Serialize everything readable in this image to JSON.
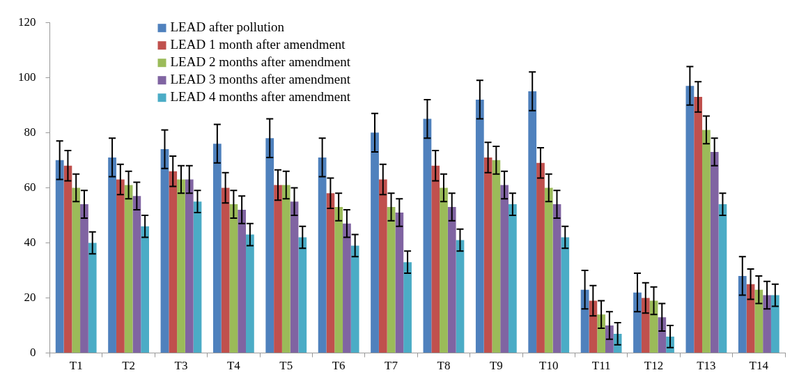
{
  "chart_data": {
    "type": "bar",
    "categories": [
      "T1",
      "T2",
      "T3",
      "T4",
      "T5",
      "T6",
      "T7",
      "T8",
      "T9",
      "T10",
      "T11",
      "T12",
      "T13",
      "T14"
    ],
    "series": [
      {
        "name": "LEAD after pollution",
        "color": "#4f81bd",
        "values": [
          70,
          71,
          74,
          76,
          78,
          71,
          80,
          85,
          92,
          95,
          23,
          22,
          97,
          28
        ],
        "errors": [
          7,
          7,
          7,
          7,
          7,
          7,
          7,
          7,
          7,
          7,
          7,
          7,
          7,
          7
        ]
      },
      {
        "name": "LEAD 1 month after amendment",
        "color": "#c0504d",
        "values": [
          68,
          63,
          66,
          60,
          61,
          58,
          63,
          68,
          71,
          69,
          19,
          20,
          93,
          25
        ],
        "errors": [
          5.5,
          5.5,
          5.5,
          5.5,
          5.5,
          5.5,
          5.5,
          5.5,
          5.5,
          5.5,
          5.5,
          5.5,
          5.5,
          5.5
        ]
      },
      {
        "name": "LEAD 2 months after amendment",
        "color": "#9bbb59",
        "values": [
          60,
          61,
          63,
          54,
          61,
          53,
          53,
          60,
          70,
          60,
          14,
          19,
          81,
          23
        ],
        "errors": [
          5,
          5,
          5,
          5,
          5,
          5,
          5,
          5,
          5,
          5,
          5,
          5,
          5,
          5
        ]
      },
      {
        "name": "LEAD 3 months after amendment",
        "color": "#8064a2",
        "values": [
          54,
          57,
          63,
          52,
          55,
          47,
          51,
          53,
          61,
          54,
          10,
          13,
          73,
          21
        ],
        "errors": [
          5,
          5,
          5,
          5,
          5,
          5,
          5,
          5,
          5,
          5,
          5,
          5,
          5,
          5
        ]
      },
      {
        "name": "LEAD 4 months after amendment",
        "color": "#4bacc6",
        "values": [
          40,
          46,
          55,
          43,
          42,
          39,
          33,
          41,
          54,
          42,
          7,
          6,
          54,
          21
        ],
        "errors": [
          4,
          4,
          4,
          4,
          4,
          4,
          4,
          4,
          4,
          4,
          4,
          4,
          4,
          4
        ]
      }
    ],
    "ylim": [
      0,
      120
    ],
    "yticks": [
      0,
      20,
      40,
      60,
      80,
      100,
      120
    ],
    "grid": false,
    "legend": "top"
  }
}
